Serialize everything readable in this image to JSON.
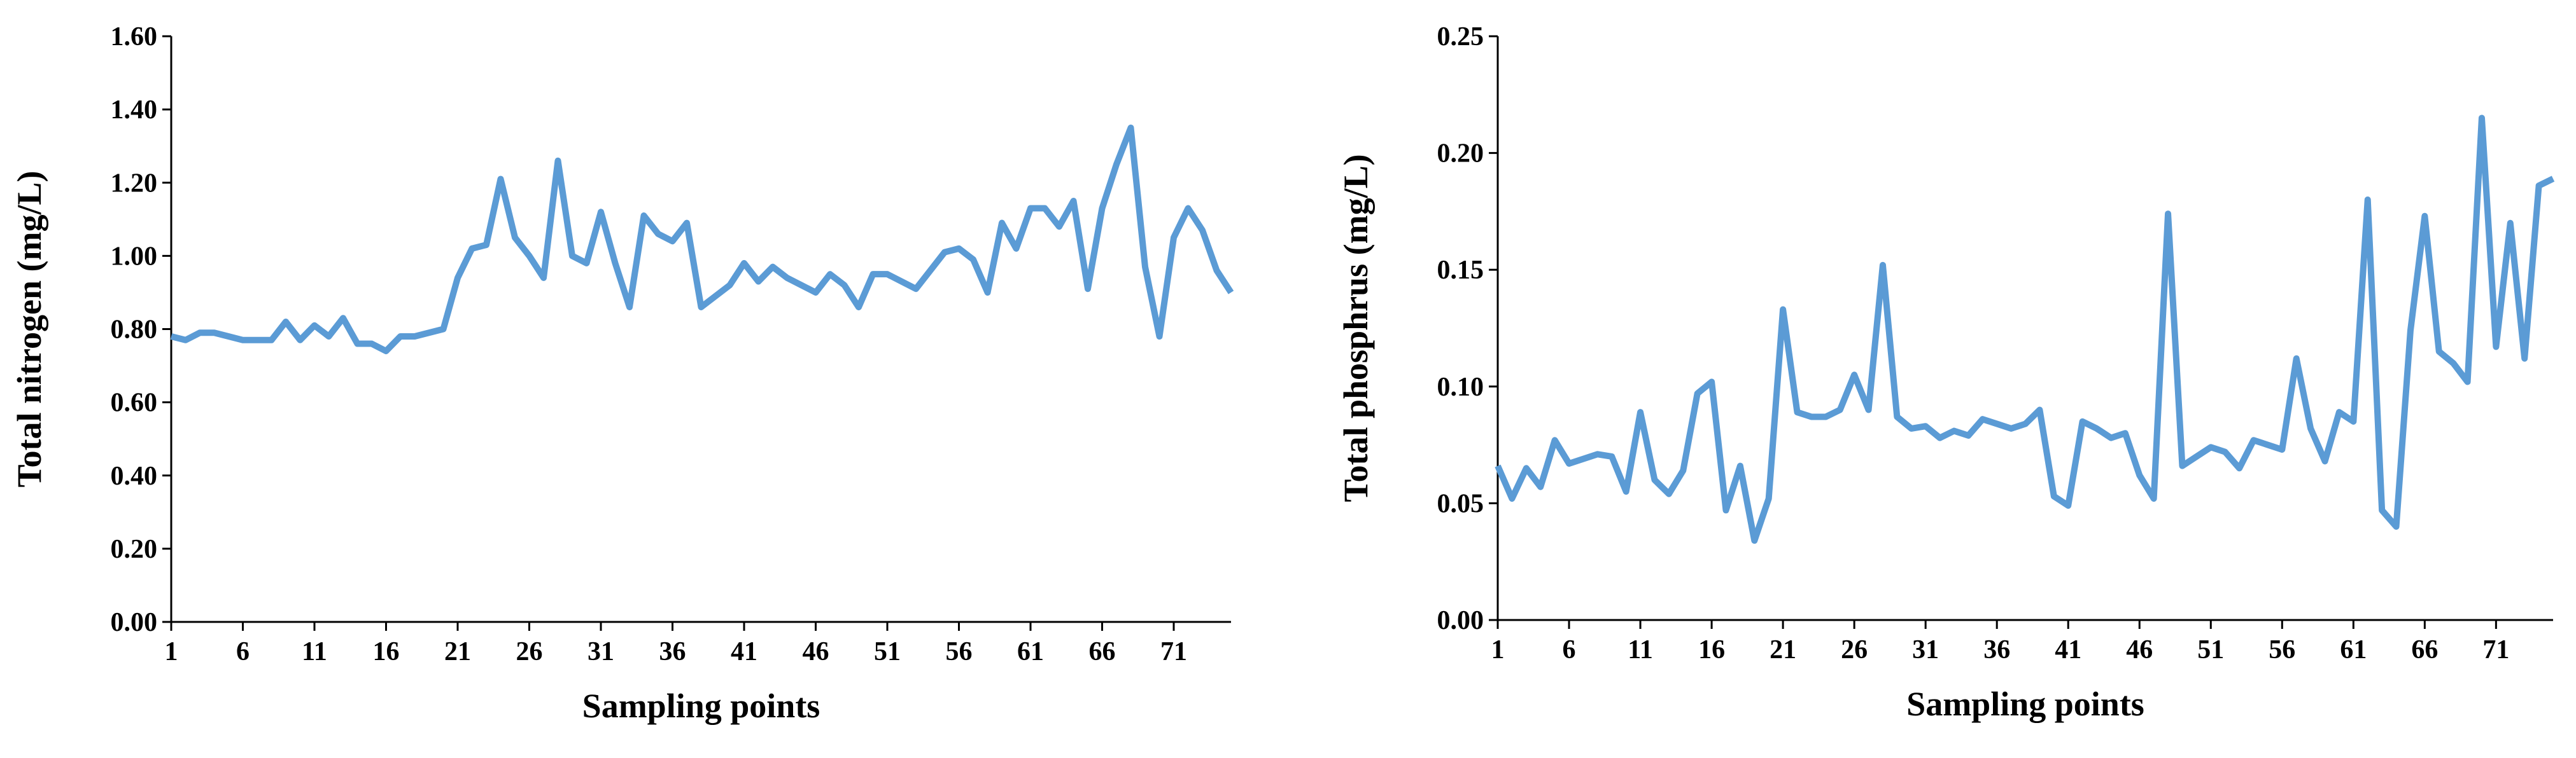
{
  "chart_data": [
    {
      "type": "line",
      "xlabel": "Sampling points",
      "ylabel": "Total nitrogen (mg/L)",
      "x": [
        1,
        2,
        3,
        4,
        5,
        6,
        7,
        8,
        9,
        10,
        11,
        12,
        13,
        14,
        15,
        16,
        17,
        18,
        19,
        20,
        21,
        22,
        23,
        24,
        25,
        26,
        27,
        28,
        29,
        30,
        31,
        32,
        33,
        34,
        35,
        36,
        37,
        38,
        39,
        40,
        41,
        42,
        43,
        44,
        45,
        46,
        47,
        48,
        49,
        50,
        51,
        52,
        53,
        54,
        55,
        56,
        57,
        58,
        59,
        60,
        61,
        62,
        63,
        64,
        65,
        66,
        67,
        68,
        69,
        70,
        71,
        72,
        73,
        74,
        75
      ],
      "series": [
        {
          "color": "#5b9bd5",
          "values": [
            0.78,
            0.77,
            0.79,
            0.79,
            0.78,
            0.77,
            0.77,
            0.77,
            0.82,
            0.77,
            0.81,
            0.78,
            0.83,
            0.76,
            0.76,
            0.74,
            0.78,
            0.78,
            0.79,
            0.8,
            0.94,
            1.02,
            1.03,
            1.21,
            1.05,
            1.0,
            0.94,
            1.26,
            1.0,
            0.98,
            1.12,
            0.98,
            0.86,
            1.11,
            1.06,
            1.04,
            1.09,
            0.86,
            0.89,
            0.92,
            0.98,
            0.93,
            0.97,
            0.94,
            0.92,
            0.9,
            0.95,
            0.92,
            0.86,
            0.95,
            0.95,
            0.93,
            0.91,
            0.96,
            1.01,
            1.02,
            0.99,
            0.9,
            1.09,
            1.02,
            1.13,
            1.13,
            1.08,
            1.15,
            0.91,
            1.13,
            1.25,
            1.35,
            0.97,
            0.78,
            1.05,
            1.13,
            1.07,
            0.96,
            0.9
          ]
        }
      ],
      "xlim": [
        1,
        75
      ],
      "xticks": [
        1,
        6,
        11,
        16,
        21,
        26,
        31,
        36,
        41,
        46,
        51,
        56,
        61,
        66,
        71
      ],
      "ylim": [
        0,
        1.6
      ],
      "yticks": [
        {
          "value": 0,
          "label": "0.00"
        },
        {
          "value": 0.2,
          "label": "0.20"
        },
        {
          "value": 0.4,
          "label": "0.40"
        },
        {
          "value": 0.6,
          "label": "0.60"
        },
        {
          "value": 0.8,
          "label": "0.80"
        },
        {
          "value": 1.0,
          "label": "1.00"
        },
        {
          "value": 1.2,
          "label": "1.20"
        },
        {
          "value": 1.4,
          "label": "1.40"
        },
        {
          "value": 1.6,
          "label": "1.60"
        }
      ],
      "grid": false
    },
    {
      "type": "line",
      "xlabel": "Sampling points",
      "ylabel": "Total phosphrus (mg/L)",
      "x": [
        1,
        2,
        3,
        4,
        5,
        6,
        7,
        8,
        9,
        10,
        11,
        12,
        13,
        14,
        15,
        16,
        17,
        18,
        19,
        20,
        21,
        22,
        23,
        24,
        25,
        26,
        27,
        28,
        29,
        30,
        31,
        32,
        33,
        34,
        35,
        36,
        37,
        38,
        39,
        40,
        41,
        42,
        43,
        44,
        45,
        46,
        47,
        48,
        49,
        50,
        51,
        52,
        53,
        54,
        55,
        56,
        57,
        58,
        59,
        60,
        61,
        62,
        63,
        64,
        65,
        66,
        67,
        68,
        69,
        70,
        71,
        72,
        73,
        74,
        75
      ],
      "series": [
        {
          "color": "#5b9bd5",
          "values": [
            0.066,
            0.052,
            0.065,
            0.057,
            0.077,
            0.067,
            0.069,
            0.071,
            0.07,
            0.055,
            0.089,
            0.06,
            0.054,
            0.064,
            0.097,
            0.102,
            0.047,
            0.066,
            0.034,
            0.052,
            0.133,
            0.089,
            0.087,
            0.087,
            0.09,
            0.105,
            0.09,
            0.152,
            0.087,
            0.082,
            0.083,
            0.078,
            0.081,
            0.079,
            0.086,
            0.084,
            0.082,
            0.084,
            0.09,
            0.053,
            0.049,
            0.085,
            0.082,
            0.078,
            0.08,
            0.062,
            0.052,
            0.174,
            0.066,
            0.07,
            0.074,
            0.072,
            0.065,
            0.077,
            0.075,
            0.073,
            0.112,
            0.082,
            0.068,
            0.089,
            0.085,
            0.18,
            0.047,
            0.04,
            0.124,
            0.173,
            0.115,
            0.11,
            0.102,
            0.215,
            0.117,
            0.17,
            0.112,
            0.186,
            0.189
          ]
        }
      ],
      "xlim": [
        1,
        75
      ],
      "xticks": [
        1,
        6,
        11,
        16,
        21,
        26,
        31,
        36,
        41,
        46,
        51,
        56,
        61,
        66,
        71
      ],
      "ylim": [
        0,
        0.25
      ],
      "yticks": [
        {
          "value": 0,
          "label": "0.00"
        },
        {
          "value": 0.05,
          "label": "0.05"
        },
        {
          "value": 0.1,
          "label": "0.10"
        },
        {
          "value": 0.15,
          "label": "0.15"
        },
        {
          "value": 0.2,
          "label": "0.20"
        },
        {
          "value": 0.25,
          "label": "0.25"
        }
      ],
      "grid": false
    }
  ]
}
